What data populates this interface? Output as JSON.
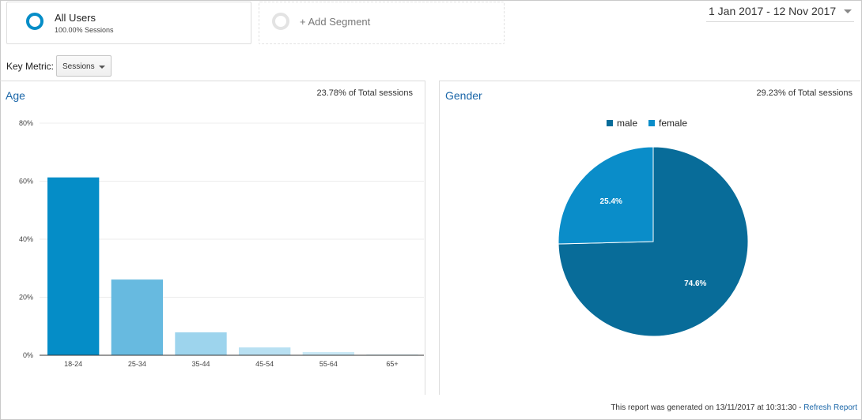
{
  "segments": {
    "all_users": {
      "title": "All Users",
      "subtitle": "100.00% Sessions"
    },
    "add_label": "+ Add Segment"
  },
  "date_range": "1 Jan 2017 - 12 Nov 2017",
  "key_metric": {
    "label": "Key Metric:",
    "value": "Sessions"
  },
  "age": {
    "title": "Age",
    "total": "23.78% of Total sessions"
  },
  "gender": {
    "title": "Gender",
    "total": "29.23% of Total sessions"
  },
  "footer": {
    "text": "This report was generated on 13/11/2017 at 10:31:30 - ",
    "link": "Refresh Report"
  },
  "colors": {
    "accent": "#058dc7",
    "male": "#086c99",
    "female": "#0a8dc9"
  },
  "chart_data": [
    {
      "type": "bar",
      "title": "Age",
      "categories": [
        "18-24",
        "25-34",
        "35-44",
        "45-54",
        "55-64",
        "65+"
      ],
      "values": [
        61.3,
        26.1,
        7.9,
        2.7,
        1.1,
        0.3
      ],
      "ylim": [
        0,
        80
      ],
      "yticks": [
        "0%",
        "20%",
        "40%",
        "60%",
        "80%"
      ],
      "bar_colors": [
        "#058dc7",
        "#67bae0",
        "#9dd4ed",
        "#b8e0f2",
        "#cae9f6",
        "#d9eff8"
      ],
      "grid": true
    },
    {
      "type": "pie",
      "title": "Gender",
      "labels": [
        "male",
        "female"
      ],
      "values": [
        74.6,
        25.4
      ],
      "value_labels": [
        "74.6%",
        "25.4%"
      ],
      "colors": [
        "#086c99",
        "#0a8dc9"
      ],
      "legend": "top"
    }
  ]
}
